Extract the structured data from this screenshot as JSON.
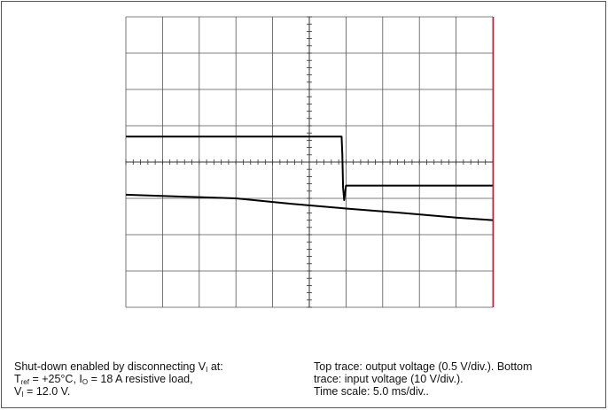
{
  "chart_data": {
    "type": "line",
    "title": "",
    "xlabel": "",
    "ylabel": "",
    "x_divisions": 10,
    "y_divisions": 8,
    "xlim": [
      0,
      10
    ],
    "ylim": [
      0,
      8
    ],
    "grid": true,
    "trace_color": "#000000",
    "cursor_color": "#e01030",
    "cursor_x": 10,
    "series": [
      {
        "x": [
          0,
          5.88,
          5.9,
          5.92,
          5.95,
          6.0,
          10
        ],
        "y": [
          4.7,
          4.7,
          4.2,
          3.3,
          2.95,
          3.35,
          3.35
        ]
      },
      {
        "x": [
          0,
          1.5,
          3.0,
          4.5,
          6.0,
          7.5,
          9.0,
          10
        ],
        "y": [
          3.1,
          3.05,
          3.0,
          2.85,
          2.72,
          2.6,
          2.47,
          2.4
        ]
      }
    ]
  },
  "captions": {
    "left": {
      "line1_pre": "Shut-down enabled by disconnecting V",
      "line1_sub": "I",
      "line1_post": " at:",
      "line2_t": "T",
      "line2_t_sub": "ref",
      "line2_mid": " = +25°C, I",
      "line2_i_sub": "O",
      "line2_post": " = 18 A resistive load,",
      "line3_pre": "V",
      "line3_sub": "I",
      "line3_post": " = 12.0 V."
    },
    "right": {
      "line1": "Top trace: output voltage (0.5 V/div.). Bottom",
      "line2": "trace: input voltage (10 V/div.).",
      "line3": "Time scale: 5.0 ms/div.."
    }
  }
}
